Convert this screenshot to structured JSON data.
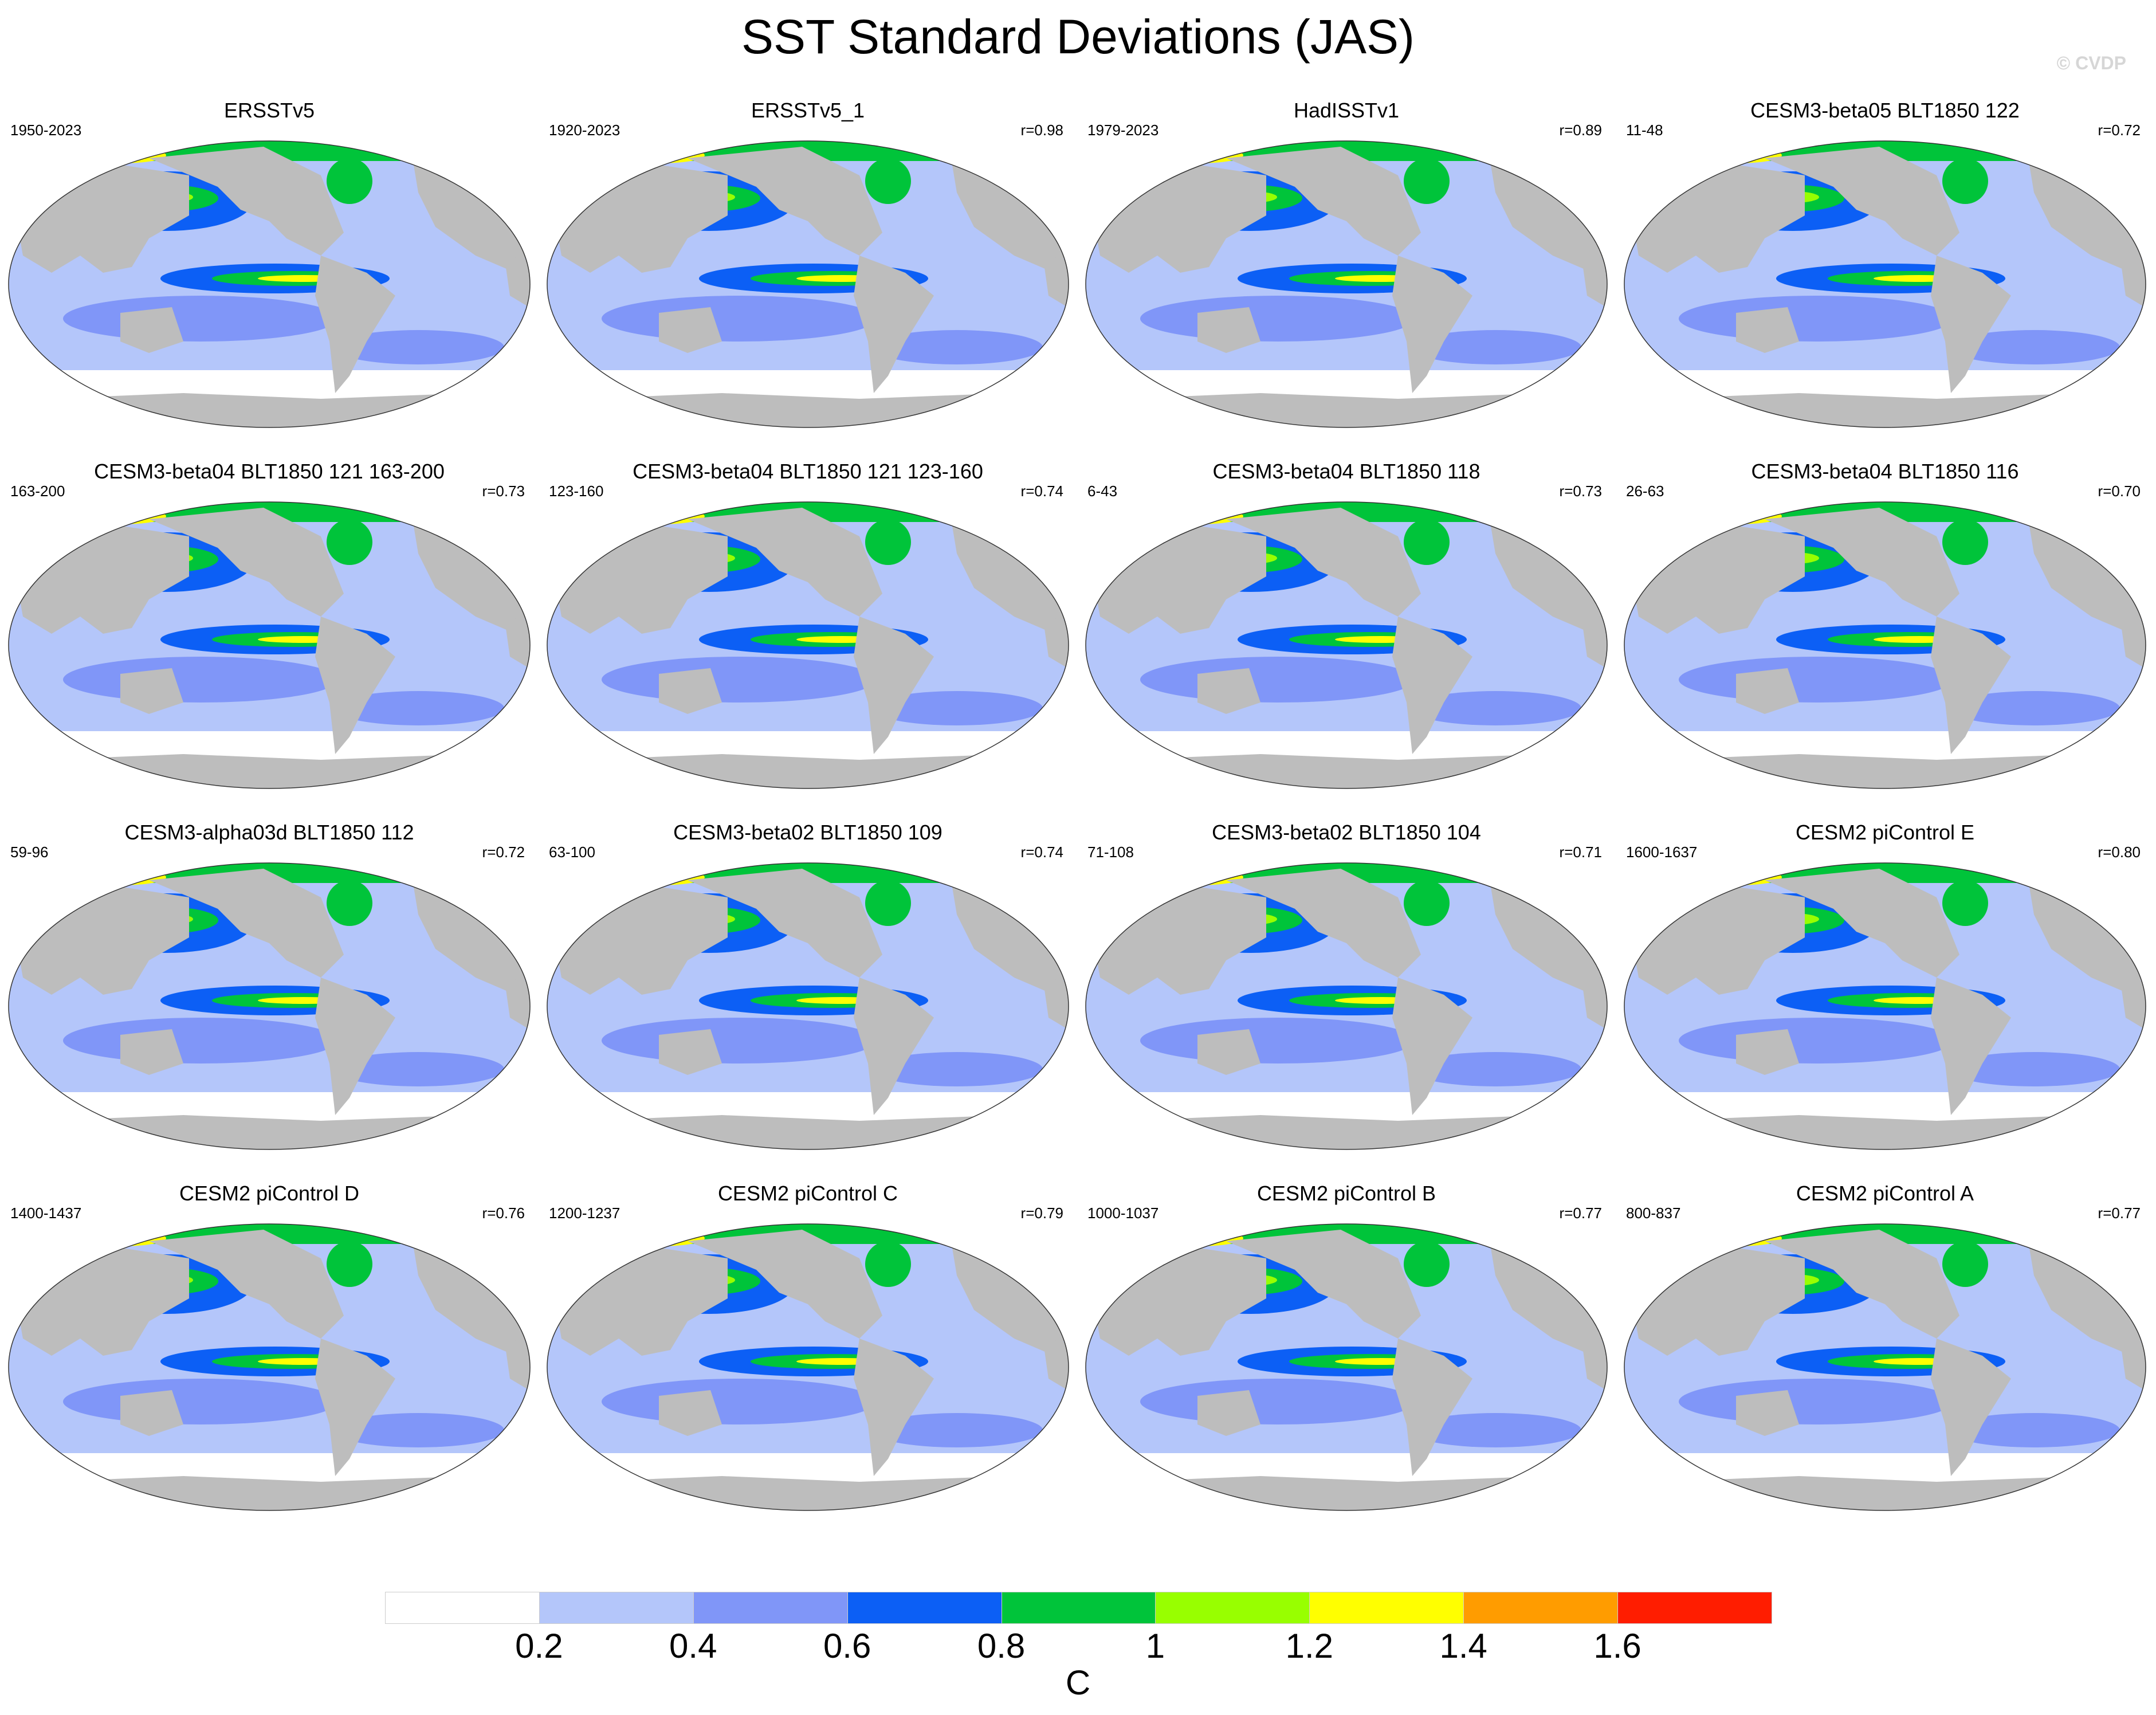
{
  "title": "SST Standard Deviations (JAS)",
  "watermark": "© CVDP",
  "panels": [
    {
      "title": "ERSSTv5",
      "period": "1950-2023",
      "corr": ""
    },
    {
      "title": "ERSSTv5_1",
      "period": "1920-2023",
      "corr": "r=0.98"
    },
    {
      "title": "HadISSTv1",
      "period": "1979-2023",
      "corr": "r=0.89"
    },
    {
      "title": "CESM3-beta05 BLT1850 122",
      "period": "11-48",
      "corr": "r=0.72"
    },
    {
      "title": "CESM3-beta04 BLT1850 121 163-200",
      "period": "163-200",
      "corr": "r=0.73"
    },
    {
      "title": "CESM3-beta04 BLT1850 121 123-160",
      "period": "123-160",
      "corr": "r=0.74"
    },
    {
      "title": "CESM3-beta04 BLT1850 118",
      "period": "6-43",
      "corr": "r=0.73"
    },
    {
      "title": "CESM3-beta04 BLT1850 116",
      "period": "26-63",
      "corr": "r=0.70"
    },
    {
      "title": "CESM3-alpha03d BLT1850 112",
      "period": "59-96",
      "corr": "r=0.72"
    },
    {
      "title": "CESM3-beta02 BLT1850 109",
      "period": "63-100",
      "corr": "r=0.74"
    },
    {
      "title": "CESM3-beta02 BLT1850 104",
      "period": "71-108",
      "corr": "r=0.71"
    },
    {
      "title": "CESM2 piControl E",
      "period": "1600-1637",
      "corr": "r=0.80"
    },
    {
      "title": "CESM2 piControl D",
      "period": "1400-1437",
      "corr": "r=0.76"
    },
    {
      "title": "CESM2 piControl C",
      "period": "1200-1237",
      "corr": "r=0.79"
    },
    {
      "title": "CESM2 piControl B",
      "period": "1000-1037",
      "corr": "r=0.77"
    },
    {
      "title": "CESM2 piControl A",
      "period": "800-837",
      "corr": "r=0.77"
    }
  ],
  "colorbar": {
    "levels": [
      "0.2",
      "0.4",
      "0.6",
      "0.8",
      "1",
      "1.2",
      "1.4",
      "1.6"
    ],
    "colors": [
      "#ffffff",
      "#b4c6fa",
      "#8096f8",
      "#0c5ff5",
      "#00c43a",
      "#98ff00",
      "#ffff00",
      "#ff9c00",
      "#ff1d00"
    ],
    "unit": "C"
  },
  "land_color": "#bdbdbd"
}
